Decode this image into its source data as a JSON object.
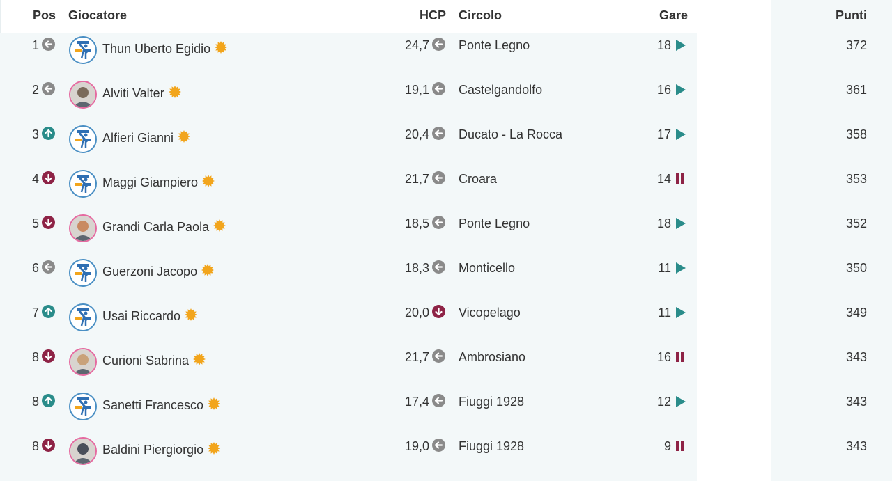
{
  "header": {
    "pos": "Pos",
    "giocatore": "Giocatore",
    "hcp": "HCP",
    "circolo": "Circolo",
    "gare": "Gare",
    "punti": "Punti"
  },
  "colors": {
    "same": "#8a8a8a",
    "up": "#2a8c8a",
    "down": "#8e2346",
    "play": "#2a8c8a",
    "pause": "#8e2346",
    "star": "#f2a51c",
    "row_bg": "#f3f8f9"
  },
  "rows": [
    {
      "pos": "1",
      "trend": "same",
      "name": "Thun Uberto Egidio",
      "avatar": "logo-avatar",
      "hcp": "24,7",
      "hcp_trend": "same",
      "circolo": "Ponte Legno",
      "gare": "18",
      "gare_status": "play",
      "punti": "372"
    },
    {
      "pos": "2",
      "trend": "same",
      "name": "Alviti Valter",
      "avatar": "photo-avatar",
      "hcp": "19,1",
      "hcp_trend": "same",
      "circolo": "Castelgandolfo",
      "gare": "16",
      "gare_status": "play",
      "punti": "361"
    },
    {
      "pos": "3",
      "trend": "up",
      "name": "Alfieri Gianni",
      "avatar": "logo-avatar",
      "hcp": "20,4",
      "hcp_trend": "same",
      "circolo": "Ducato - La Rocca",
      "gare": "17",
      "gare_status": "play",
      "punti": "358"
    },
    {
      "pos": "4",
      "trend": "down",
      "name": "Maggi Giampiero",
      "avatar": "logo-avatar",
      "hcp": "21,7",
      "hcp_trend": "same",
      "circolo": "Croara",
      "gare": "14",
      "gare_status": "pause",
      "punti": "353"
    },
    {
      "pos": "5",
      "trend": "down",
      "name": "Grandi Carla Paola",
      "avatar": "photo-avatar",
      "hcp": "18,5",
      "hcp_trend": "same",
      "circolo": "Ponte Legno",
      "gare": "18",
      "gare_status": "play",
      "punti": "352"
    },
    {
      "pos": "6",
      "trend": "same",
      "name": "Guerzoni Jacopo",
      "avatar": "logo-avatar",
      "hcp": "18,3",
      "hcp_trend": "same",
      "circolo": "Monticello",
      "gare": "11",
      "gare_status": "play",
      "punti": "350"
    },
    {
      "pos": "7",
      "trend": "up",
      "name": "Usai Riccardo",
      "avatar": "logo-avatar",
      "hcp": "20,0",
      "hcp_trend": "down",
      "circolo": "Vicopelago",
      "gare": "11",
      "gare_status": "play",
      "punti": "349"
    },
    {
      "pos": "8",
      "trend": "down",
      "name": "Curioni Sabrina",
      "avatar": "photo-avatar",
      "hcp": "21,7",
      "hcp_trend": "same",
      "circolo": "Ambrosiano",
      "gare": "16",
      "gare_status": "pause",
      "punti": "343"
    },
    {
      "pos": "8",
      "trend": "up",
      "name": "Sanetti Francesco",
      "avatar": "logo-avatar",
      "hcp": "17,4",
      "hcp_trend": "same",
      "circolo": "Fiuggi 1928",
      "gare": "12",
      "gare_status": "play",
      "punti": "343"
    },
    {
      "pos": "8",
      "trend": "down",
      "name": "Baldini Piergiorgio",
      "avatar": "photo-avatar",
      "hcp": "19,0",
      "hcp_trend": "same",
      "circolo": "Fiuggi 1928",
      "gare": "9",
      "gare_status": "pause",
      "punti": "343"
    }
  ]
}
